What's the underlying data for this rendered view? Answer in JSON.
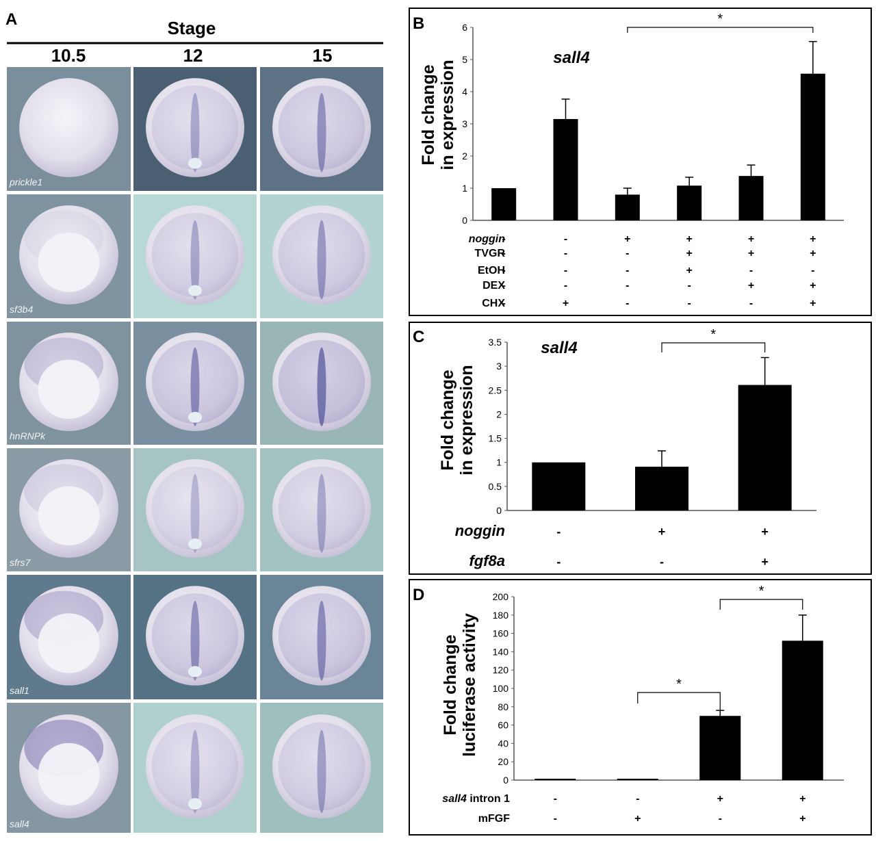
{
  "panel_a": {
    "letter": "A",
    "header": "Stage",
    "stages": [
      "10.5",
      "12",
      "15"
    ],
    "rows": [
      {
        "gene": "prickle1",
        "bg": [
          "#7a8e9c",
          "#4a6072",
          "#5d7284"
        ],
        "stain": [
          0.0,
          0.45,
          0.6
        ]
      },
      {
        "gene": "sf3b4",
        "bg": [
          "#7f94a0",
          "#b8d8d6",
          "#b3d3d2"
        ],
        "stain": [
          0.1,
          0.45,
          0.55
        ]
      },
      {
        "gene": "hnRNPk",
        "bg": [
          "#7f939f",
          "#7a90a0",
          "#9ab5b5"
        ],
        "stain": [
          0.35,
          0.65,
          0.8
        ]
      },
      {
        "gene": "sfrs7",
        "bg": [
          "#8a9ba6",
          "#a6c4c4",
          "#a3c2c2"
        ],
        "stain": [
          0.2,
          0.35,
          0.45
        ]
      },
      {
        "gene": "sall1",
        "bg": [
          "#5f7a8c",
          "#557184",
          "#6a8598"
        ],
        "stain": [
          0.45,
          0.6,
          0.65
        ]
      },
      {
        "gene": "sall4",
        "bg": [
          "#8497a2",
          "#b0d0cd",
          "#9fbfbf"
        ],
        "stain": [
          0.7,
          0.4,
          0.5
        ]
      }
    ]
  },
  "chart_data": [
    {
      "panel": "B",
      "type": "bar",
      "title": "sall4",
      "ylabel": [
        "Fold change",
        "in expression"
      ],
      "ylim": [
        0,
        6
      ],
      "yticks": [
        "0",
        "1",
        "2",
        "3",
        "4",
        "5",
        "6"
      ],
      "values": [
        1.0,
        3.15,
        0.8,
        1.08,
        1.38,
        4.56
      ],
      "errors": [
        0,
        0.62,
        0.2,
        0.26,
        0.34,
        1.0
      ],
      "conditions": [
        {
          "label": "noggin",
          "italic": true,
          "signs": [
            "-",
            "-",
            "+",
            "+",
            "+",
            "+"
          ]
        },
        {
          "label": "TVGR",
          "italic": false,
          "signs": [
            "-",
            "-",
            "-",
            "+",
            "+",
            "+"
          ]
        },
        {
          "label": "EtOH",
          "italic": false,
          "signs": [
            "-",
            "-",
            "-",
            "+",
            "-",
            "-"
          ]
        },
        {
          "label": "DEX",
          "italic": false,
          "signs": [
            "-",
            "-",
            "-",
            "-",
            "+",
            "+"
          ]
        },
        {
          "label": "CHX",
          "italic": false,
          "signs": [
            "-",
            "+",
            "-",
            "-",
            "-",
            "+"
          ]
        }
      ],
      "significance": [
        {
          "from": 2,
          "to": 5,
          "label": "*"
        }
      ]
    },
    {
      "panel": "C",
      "type": "bar",
      "title": "sall4",
      "ylabel": [
        "Fold change",
        "in expression"
      ],
      "ylim": [
        0,
        3.5
      ],
      "yticks": [
        "0",
        "0.5",
        "1",
        "1.5",
        "2",
        "2.5",
        "3",
        "3.5"
      ],
      "values": [
        1.0,
        0.91,
        2.61
      ],
      "errors": [
        0,
        0.33,
        0.57
      ],
      "conditions": [
        {
          "label": "noggin",
          "italic": true,
          "signs": [
            "-",
            "+",
            "+"
          ]
        },
        {
          "label": "fgf8a",
          "italic": true,
          "signs": [
            "-",
            "-",
            "+"
          ]
        }
      ],
      "significance": [
        {
          "from": 1,
          "to": 2,
          "label": "*"
        }
      ]
    },
    {
      "panel": "D",
      "type": "bar",
      "ylabel": [
        "Fold change",
        "luciferase activity"
      ],
      "ylim": [
        0,
        200
      ],
      "yticks": [
        "0",
        "20",
        "40",
        "60",
        "80",
        "100",
        "120",
        "140",
        "160",
        "180",
        "200"
      ],
      "values": [
        1.0,
        1.0,
        70,
        152
      ],
      "errors": [
        0,
        0,
        6,
        28
      ],
      "conditions": [
        {
          "label": "sall4 intron 1",
          "italic_part": "sall4",
          "plain_part": " intron 1",
          "signs": [
            "-",
            "-",
            "+",
            "+"
          ]
        },
        {
          "label": "mFGF",
          "italic": false,
          "signs": [
            "-",
            "+",
            "-",
            "+"
          ]
        }
      ],
      "significance": [
        {
          "from": 1,
          "to": 2,
          "label": "*"
        },
        {
          "from": 2,
          "to": 3,
          "label": "*"
        }
      ]
    }
  ]
}
